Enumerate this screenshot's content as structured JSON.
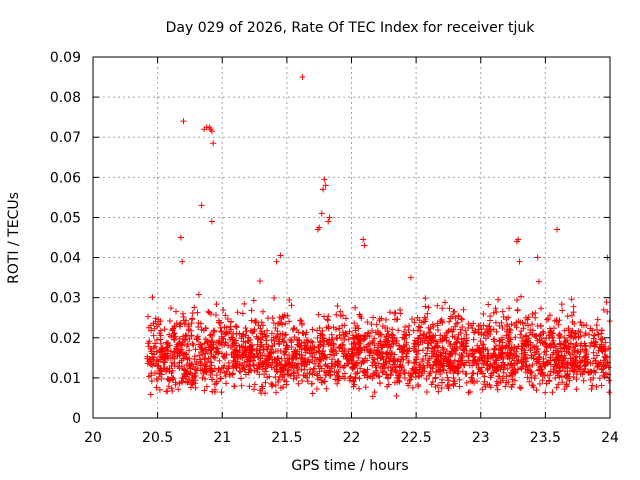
{
  "chart_data": {
    "type": "scatter",
    "title": "Day 029 of 2026, Rate Of TEC Index for receiver tjuk",
    "xlabel": "GPS time / hours",
    "ylabel": "ROTI / TECUs",
    "xlim": [
      20,
      24
    ],
    "ylim": [
      0,
      0.09
    ],
    "grid": true,
    "marker": "plus",
    "color": "#ff0000",
    "x_ticks": [
      "20",
      "20.5",
      "21",
      "21.5",
      "22",
      "22.5",
      "23",
      "23.5",
      "24"
    ],
    "y_ticks": [
      "0",
      "0.01",
      "0.02",
      "0.03",
      "0.04",
      "0.05",
      "0.06",
      "0.07",
      "0.08",
      "0.09"
    ],
    "outliers": {
      "x": [
        20.7,
        20.84,
        20.86,
        20.88,
        20.9,
        20.91,
        20.92,
        20.93,
        20.92,
        21.62,
        21.74,
        21.75,
        21.77,
        21.78,
        21.79,
        21.8,
        21.82,
        21.83,
        20.68,
        20.69,
        21.45,
        21.42,
        22.09,
        22.1,
        22.46,
        23.28,
        23.29,
        23.3,
        23.44,
        23.45,
        23.59,
        23.98
      ],
      "y": [
        0.074,
        0.053,
        0.072,
        0.0725,
        0.0725,
        0.072,
        0.0715,
        0.0685,
        0.049,
        0.085,
        0.047,
        0.0475,
        0.051,
        0.057,
        0.0595,
        0.058,
        0.049,
        0.05,
        0.045,
        0.039,
        0.0405,
        0.039,
        0.0445,
        0.043,
        0.035,
        0.044,
        0.0445,
        0.039,
        0.04,
        0.034,
        0.047,
        0.04
      ]
    },
    "bulk": {
      "x_range": [
        20.42,
        24.0
      ],
      "count": 2600,
      "typical_y": [
        0.005,
        0.03
      ],
      "seed": 29
    }
  }
}
